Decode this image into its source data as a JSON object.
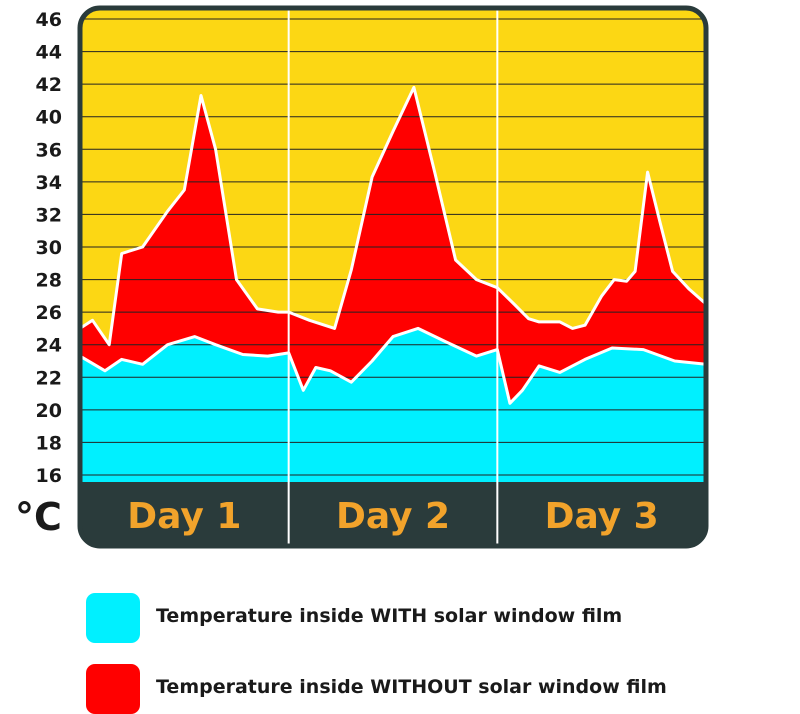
{
  "colors": {
    "background_zone": "#fcd714",
    "with_film": "#00f0ff",
    "without_film": "#ff0000",
    "frame": "#2a3b3b",
    "grid": "#222222",
    "day_label": "#f2a32b"
  },
  "chart_data": {
    "type": "area",
    "unit_label": "°C",
    "y_ticks": [
      16,
      18,
      20,
      22,
      24,
      26,
      28,
      30,
      32,
      34,
      36,
      40,
      42,
      44,
      46
    ],
    "ylim": [
      15,
      46.8
    ],
    "xlim": [
      0,
      3
    ],
    "days": [
      "Day 1",
      "Day 2",
      "Day 3"
    ],
    "grid": true,
    "series": [
      {
        "name": "Temperature inside WITHOUT solar window film",
        "color": "#ff0000",
        "x": [
          0,
          0.06,
          0.14,
          0.2,
          0.3,
          0.42,
          0.5,
          0.58,
          0.65,
          0.75,
          0.85,
          0.95,
          1.0,
          1.1,
          1.22,
          1.3,
          1.4,
          1.5,
          1.6,
          1.7,
          1.8,
          1.9,
          2.0,
          2.08,
          2.15,
          2.2,
          2.3,
          2.36,
          2.42,
          2.5,
          2.56,
          2.62,
          2.66,
          2.72,
          2.78,
          2.84,
          2.92,
          3.0
        ],
        "y": [
          25.0,
          25.5,
          24.0,
          29.6,
          30.0,
          32.2,
          33.5,
          41.3,
          36.0,
          28.0,
          26.2,
          26.0,
          26.0,
          25.5,
          25.0,
          28.6,
          34.3,
          38.2,
          41.8,
          34.6,
          29.2,
          28.0,
          27.5,
          26.5,
          25.6,
          25.4,
          25.4,
          25.0,
          25.2,
          27.0,
          28.0,
          27.9,
          28.5,
          34.6,
          31.5,
          28.5,
          27.4,
          26.5
        ]
      },
      {
        "name": "Temperature inside WITH solar window film",
        "color": "#00f0ff",
        "x": [
          0,
          0.12,
          0.2,
          0.3,
          0.42,
          0.55,
          0.65,
          0.78,
          0.9,
          1.0,
          1.07,
          1.13,
          1.2,
          1.3,
          1.4,
          1.5,
          1.62,
          1.75,
          1.9,
          2.0,
          2.06,
          2.12,
          2.2,
          2.3,
          2.42,
          2.55,
          2.7,
          2.85,
          3.0
        ],
        "y": [
          23.3,
          22.4,
          23.1,
          22.8,
          24.0,
          24.5,
          24.0,
          23.4,
          23.3,
          23.5,
          21.2,
          22.6,
          22.4,
          21.7,
          23.0,
          24.5,
          25.0,
          24.2,
          23.3,
          23.7,
          20.4,
          21.2,
          22.7,
          22.3,
          23.1,
          23.8,
          23.7,
          23.0,
          22.8
        ]
      }
    ]
  },
  "legend": [
    {
      "label": "Temperature inside WITH solar window film",
      "color": "#00f0ff"
    },
    {
      "label": "Temperature inside WITHOUT solar window film",
      "color": "#ff0000"
    }
  ]
}
